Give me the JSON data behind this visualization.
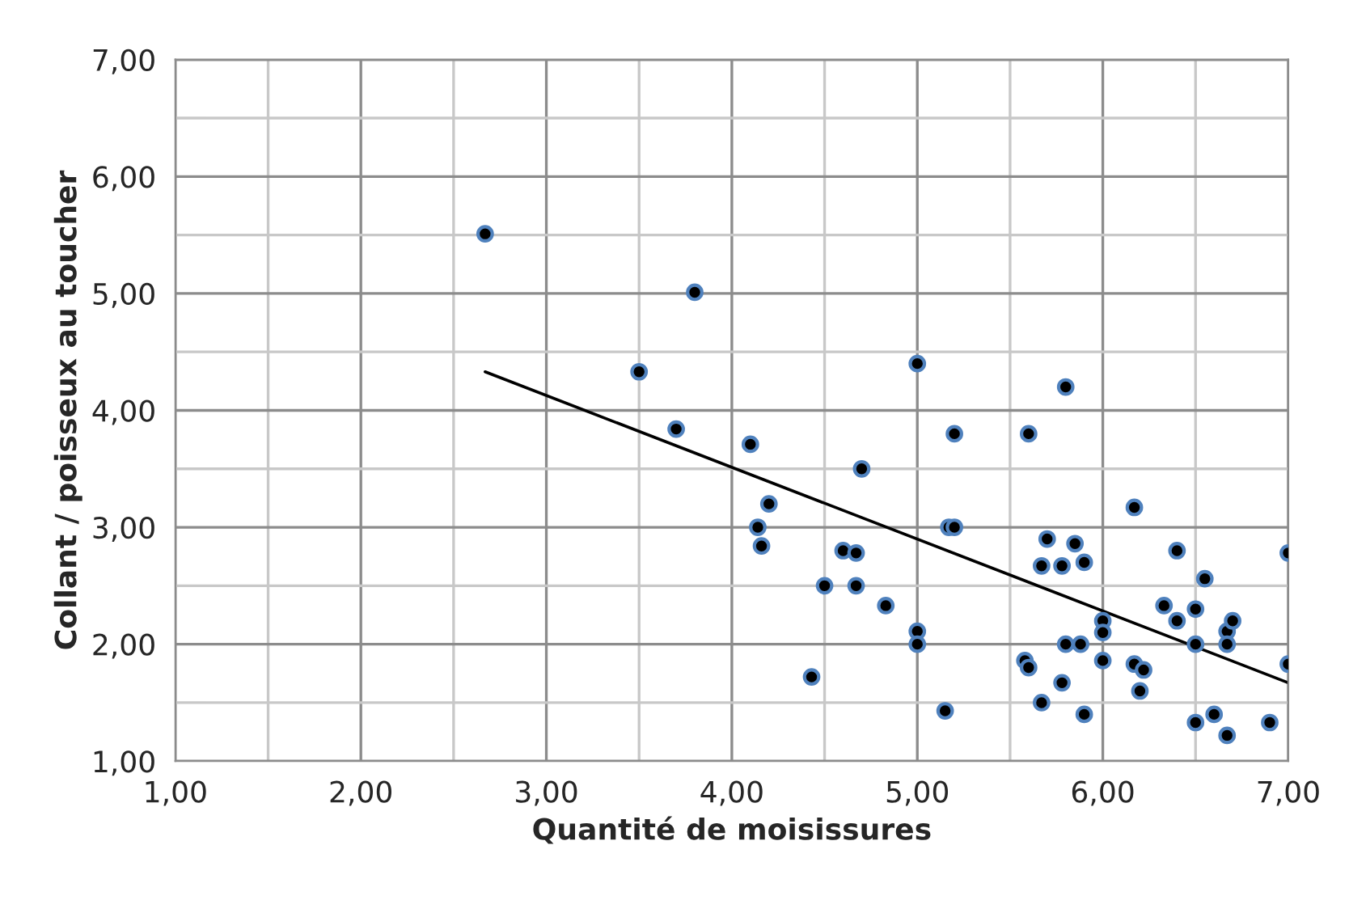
{
  "chart_data": {
    "type": "scatter",
    "xlabel": "Quantité de moisissures",
    "ylabel": "Collant / poisseux au toucher",
    "xlim": [
      1,
      7
    ],
    "ylim": [
      1,
      7
    ],
    "xticks": [
      {
        "value": 1,
        "label": "1,00"
      },
      {
        "value": 2,
        "label": "2,00"
      },
      {
        "value": 3,
        "label": "3,00"
      },
      {
        "value": 4,
        "label": "4,00"
      },
      {
        "value": 5,
        "label": "5,00"
      },
      {
        "value": 6,
        "label": "6,00"
      },
      {
        "value": 7,
        "label": "7,00"
      }
    ],
    "yticks": [
      {
        "value": 1,
        "label": "1,00"
      },
      {
        "value": 2,
        "label": "2,00"
      },
      {
        "value": 3,
        "label": "3,00"
      },
      {
        "value": 4,
        "label": "4,00"
      },
      {
        "value": 5,
        "label": "5,00"
      },
      {
        "value": 6,
        "label": "6,00"
      },
      {
        "value": 7,
        "label": "7,00"
      }
    ],
    "grid": true,
    "marker": "circle",
    "legend": false,
    "series": [
      {
        "color": "#000000",
        "x": [
          2.67,
          3.5,
          3.8,
          3.7,
          4.1,
          4.14,
          4.16,
          4.2,
          4.43,
          4.5,
          4.6,
          4.67,
          4.67,
          4.7,
          4.83,
          5.0,
          5.0,
          5.0,
          5.15,
          5.17,
          5.2,
          5.2,
          5.58,
          5.6,
          5.6,
          5.67,
          5.67,
          5.7,
          5.78,
          5.78,
          5.8,
          5.8,
          5.85,
          5.88,
          5.9,
          5.9,
          6.0,
          6.0,
          6.0,
          6.17,
          6.17,
          6.2,
          6.22,
          6.33,
          6.4,
          6.4,
          6.5,
          6.5,
          6.5,
          6.55,
          6.6,
          6.67,
          6.67,
          6.67,
          6.7,
          6.9,
          7.0,
          7.0
        ],
        "values": [
          5.51,
          4.33,
          5.01,
          3.84,
          3.71,
          3.0,
          2.84,
          3.2,
          1.72,
          2.5,
          2.8,
          2.78,
          2.5,
          3.5,
          2.33,
          4.4,
          2.11,
          2.0,
          1.43,
          3.0,
          3.0,
          3.8,
          1.86,
          1.8,
          3.8,
          2.67,
          1.5,
          2.9,
          2.67,
          1.67,
          2.0,
          4.2,
          2.86,
          2.0,
          2.7,
          1.4,
          2.2,
          2.1,
          1.86,
          1.83,
          3.17,
          1.6,
          1.78,
          2.33,
          2.8,
          2.2,
          2.3,
          2.0,
          1.33,
          2.56,
          1.4,
          2.11,
          2.0,
          1.22,
          2.2,
          1.33,
          2.78,
          1.83
        ]
      },
      {
        "type": "line",
        "color": "#000000",
        "marker": "none",
        "line_style": "solid",
        "x": [
          2.67,
          7.0
        ],
        "values": [
          4.33,
          1.67
        ]
      }
    ]
  }
}
